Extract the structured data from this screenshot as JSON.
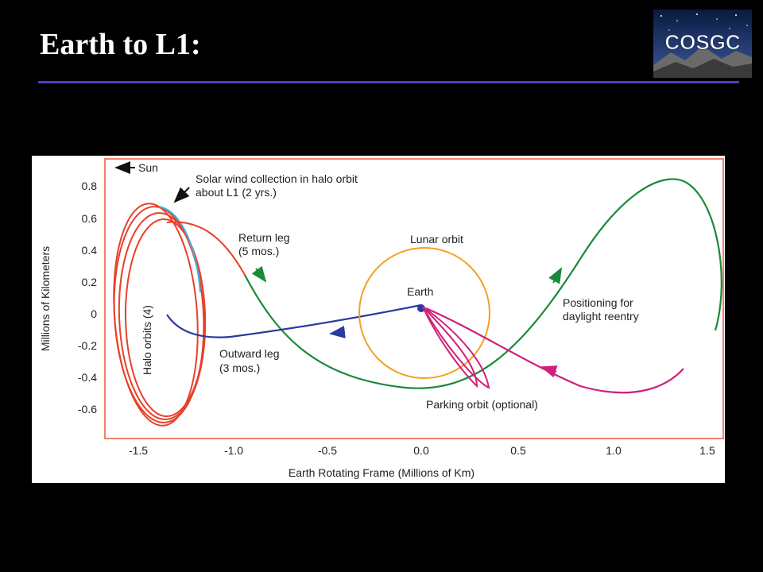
{
  "slide": {
    "title": "Earth to L1:"
  },
  "logo": {
    "text": "COSGC"
  },
  "diagram": {
    "axes": {
      "xlabel": "Earth Rotating Frame (Millions of Km)",
      "ylabel": "Millions of Kilometers",
      "xticks": [
        "-1.5",
        "-1.0",
        "-0.5",
        "0.0",
        "0.5",
        "1.0",
        "1.5"
      ],
      "yticks": [
        "0.8",
        "0.6",
        "0.4",
        "0.2",
        "0",
        "-0.2",
        "-0.4",
        "-0.6"
      ]
    },
    "labels": {
      "sun": "Sun",
      "solar_wind_line1": "Solar wind collection in halo orbit",
      "solar_wind_line2": "about L1 (2 yrs.)",
      "return_leg_line1": "Return leg",
      "return_leg_line2": "(5 mos.)",
      "lunar_orbit": "Lunar orbit",
      "earth": "Earth",
      "positioning_line1": "Positioning for",
      "positioning_line2": "daylight reentry",
      "halo_orbits": "Halo orbits (4)",
      "outward_leg_line1": "Outward leg",
      "outward_leg_line2": "(3 mos.)",
      "parking_orbit": "Parking orbit (optional)"
    },
    "colors": {
      "frame": "#f08070",
      "halo": "#e8402a",
      "outward_leg": "#2a3aa0",
      "return_leg": "#1a8a3a",
      "lunar_orbit": "#f5a020",
      "parking": "#d0207a",
      "arrival": "#40b0e0"
    }
  }
}
